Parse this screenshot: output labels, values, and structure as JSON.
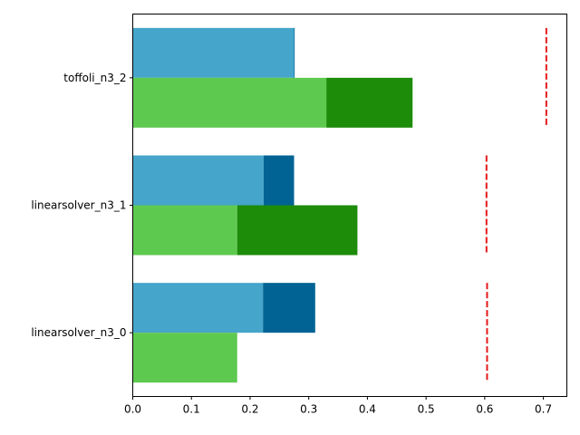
{
  "chart_data": {
    "type": "bar",
    "orientation": "horizontal",
    "stacked": true,
    "title": "",
    "xlabel": "",
    "ylabel": "",
    "xlim": [
      0,
      0.74
    ],
    "x_ticks": [
      0.0,
      0.1,
      0.2,
      0.3,
      0.4,
      0.5,
      0.6,
      0.7
    ],
    "x_tick_labels": [
      "0.0",
      "0.1",
      "0.2",
      "0.3",
      "0.4",
      "0.5",
      "0.6",
      "0.7"
    ],
    "categories": [
      "linearsolver_n3_0",
      "linearsolver_n3_1",
      "toffoli_n3_2"
    ],
    "bar_groups": [
      {
        "position": "upper",
        "segments": [
          {
            "color": "#45a5cb",
            "values": [
              0.222,
              0.223,
              0.275
            ]
          },
          {
            "color": "#006394",
            "values": [
              0.089,
              0.052,
              0.001
            ]
          }
        ]
      },
      {
        "position": "lower",
        "segments": [
          {
            "color": "#5ec94f",
            "values": [
              0.178,
              0.178,
              0.33
            ]
          },
          {
            "color": "#1c8c09",
            "values": [
              0.0,
              0.205,
              0.147
            ]
          }
        ]
      }
    ],
    "reference_lines": {
      "color": "#e41a1c",
      "style": "dashed",
      "values": [
        0.604,
        0.603,
        0.705
      ]
    },
    "grid": false,
    "legend": "none"
  }
}
